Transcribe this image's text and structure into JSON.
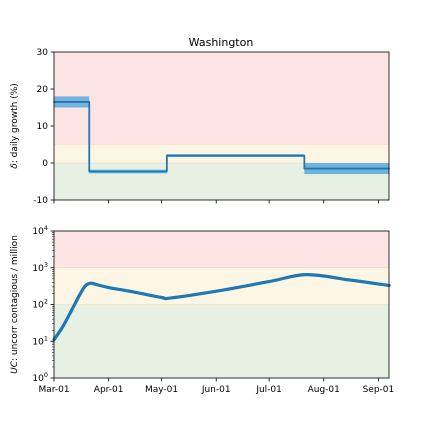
{
  "chart_data": [
    {
      "type": "line",
      "title": "Washington",
      "ylabel": "δ: daily growth (%)",
      "ylim": [
        -10,
        30
      ],
      "yticks": [
        -10,
        0,
        10,
        20,
        30
      ],
      "xlim": [
        "2020-03-01",
        "2020-09-07"
      ],
      "bands": [
        {
          "from": 5,
          "to": 30,
          "color": "#fde4e4"
        },
        {
          "from": 0,
          "to": 5,
          "color": "#fdf6e4"
        },
        {
          "from": -10,
          "to": 0,
          "color": "#e6f1e4"
        }
      ],
      "series": [
        {
          "color": "#1f77b4",
          "band_color": "#5aa9dc",
          "x": [
            "2020-03-01",
            "2020-03-21",
            "2020-03-21",
            "2020-05-04",
            "2020-05-04",
            "2020-07-21",
            "2020-07-21",
            "2020-09-07"
          ],
          "y": [
            16.5,
            16.5,
            -2.3,
            -2.3,
            2.0,
            2.0,
            -1.5,
            -1.5
          ],
          "band_low": [
            15.0,
            15.0,
            -2.8,
            -2.8,
            1.6,
            1.6,
            -3.0,
            -3.0
          ],
          "band_high": [
            18.0,
            18.0,
            -1.8,
            -1.8,
            2.4,
            2.4,
            0.0,
            0.0
          ]
        }
      ]
    },
    {
      "type": "line",
      "ylabel": "UC: uncorr contagious / million",
      "yscale": "log",
      "ylim": [
        1,
        10000
      ],
      "yticks": [
        1,
        10,
        100,
        1000,
        10000
      ],
      "ytick_labels": [
        [
          "10",
          "0"
        ],
        [
          "10",
          "1"
        ],
        [
          "10",
          "2"
        ],
        [
          "10",
          "3"
        ],
        [
          "10",
          "4"
        ]
      ],
      "xlim": [
        "2020-03-01",
        "2020-09-07"
      ],
      "xticks": [
        "2020-03-01",
        "2020-04-01",
        "2020-05-01",
        "2020-06-01",
        "2020-07-01",
        "2020-08-01",
        "2020-09-01"
      ],
      "xtick_labels": [
        "Mar-01",
        "Apr-01",
        "May-01",
        "Jun-01",
        "Jul-01",
        "Aug-01",
        "Sep-01"
      ],
      "bands": [
        {
          "from": 1000,
          "to": 10000,
          "color": "#fde4e4"
        },
        {
          "from": 100,
          "to": 1000,
          "color": "#fdf6e4"
        },
        {
          "from": 1,
          "to": 100,
          "color": "#e6f1e4"
        }
      ],
      "series": [
        {
          "color": "#1f77b4",
          "x": [
            "2020-03-01",
            "2020-03-06",
            "2020-03-11",
            "2020-03-16",
            "2020-03-19",
            "2020-03-22",
            "2020-03-25",
            "2020-04-01",
            "2020-04-15",
            "2020-05-01",
            "2020-05-06",
            "2020-06-01",
            "2020-07-01",
            "2020-07-22",
            "2020-08-15",
            "2020-09-07"
          ],
          "y": [
            11,
            25,
            70,
            200,
            330,
            380,
            350,
            290,
            220,
            155,
            150,
            230,
            420,
            650,
            470,
            330
          ]
        }
      ]
    }
  ]
}
